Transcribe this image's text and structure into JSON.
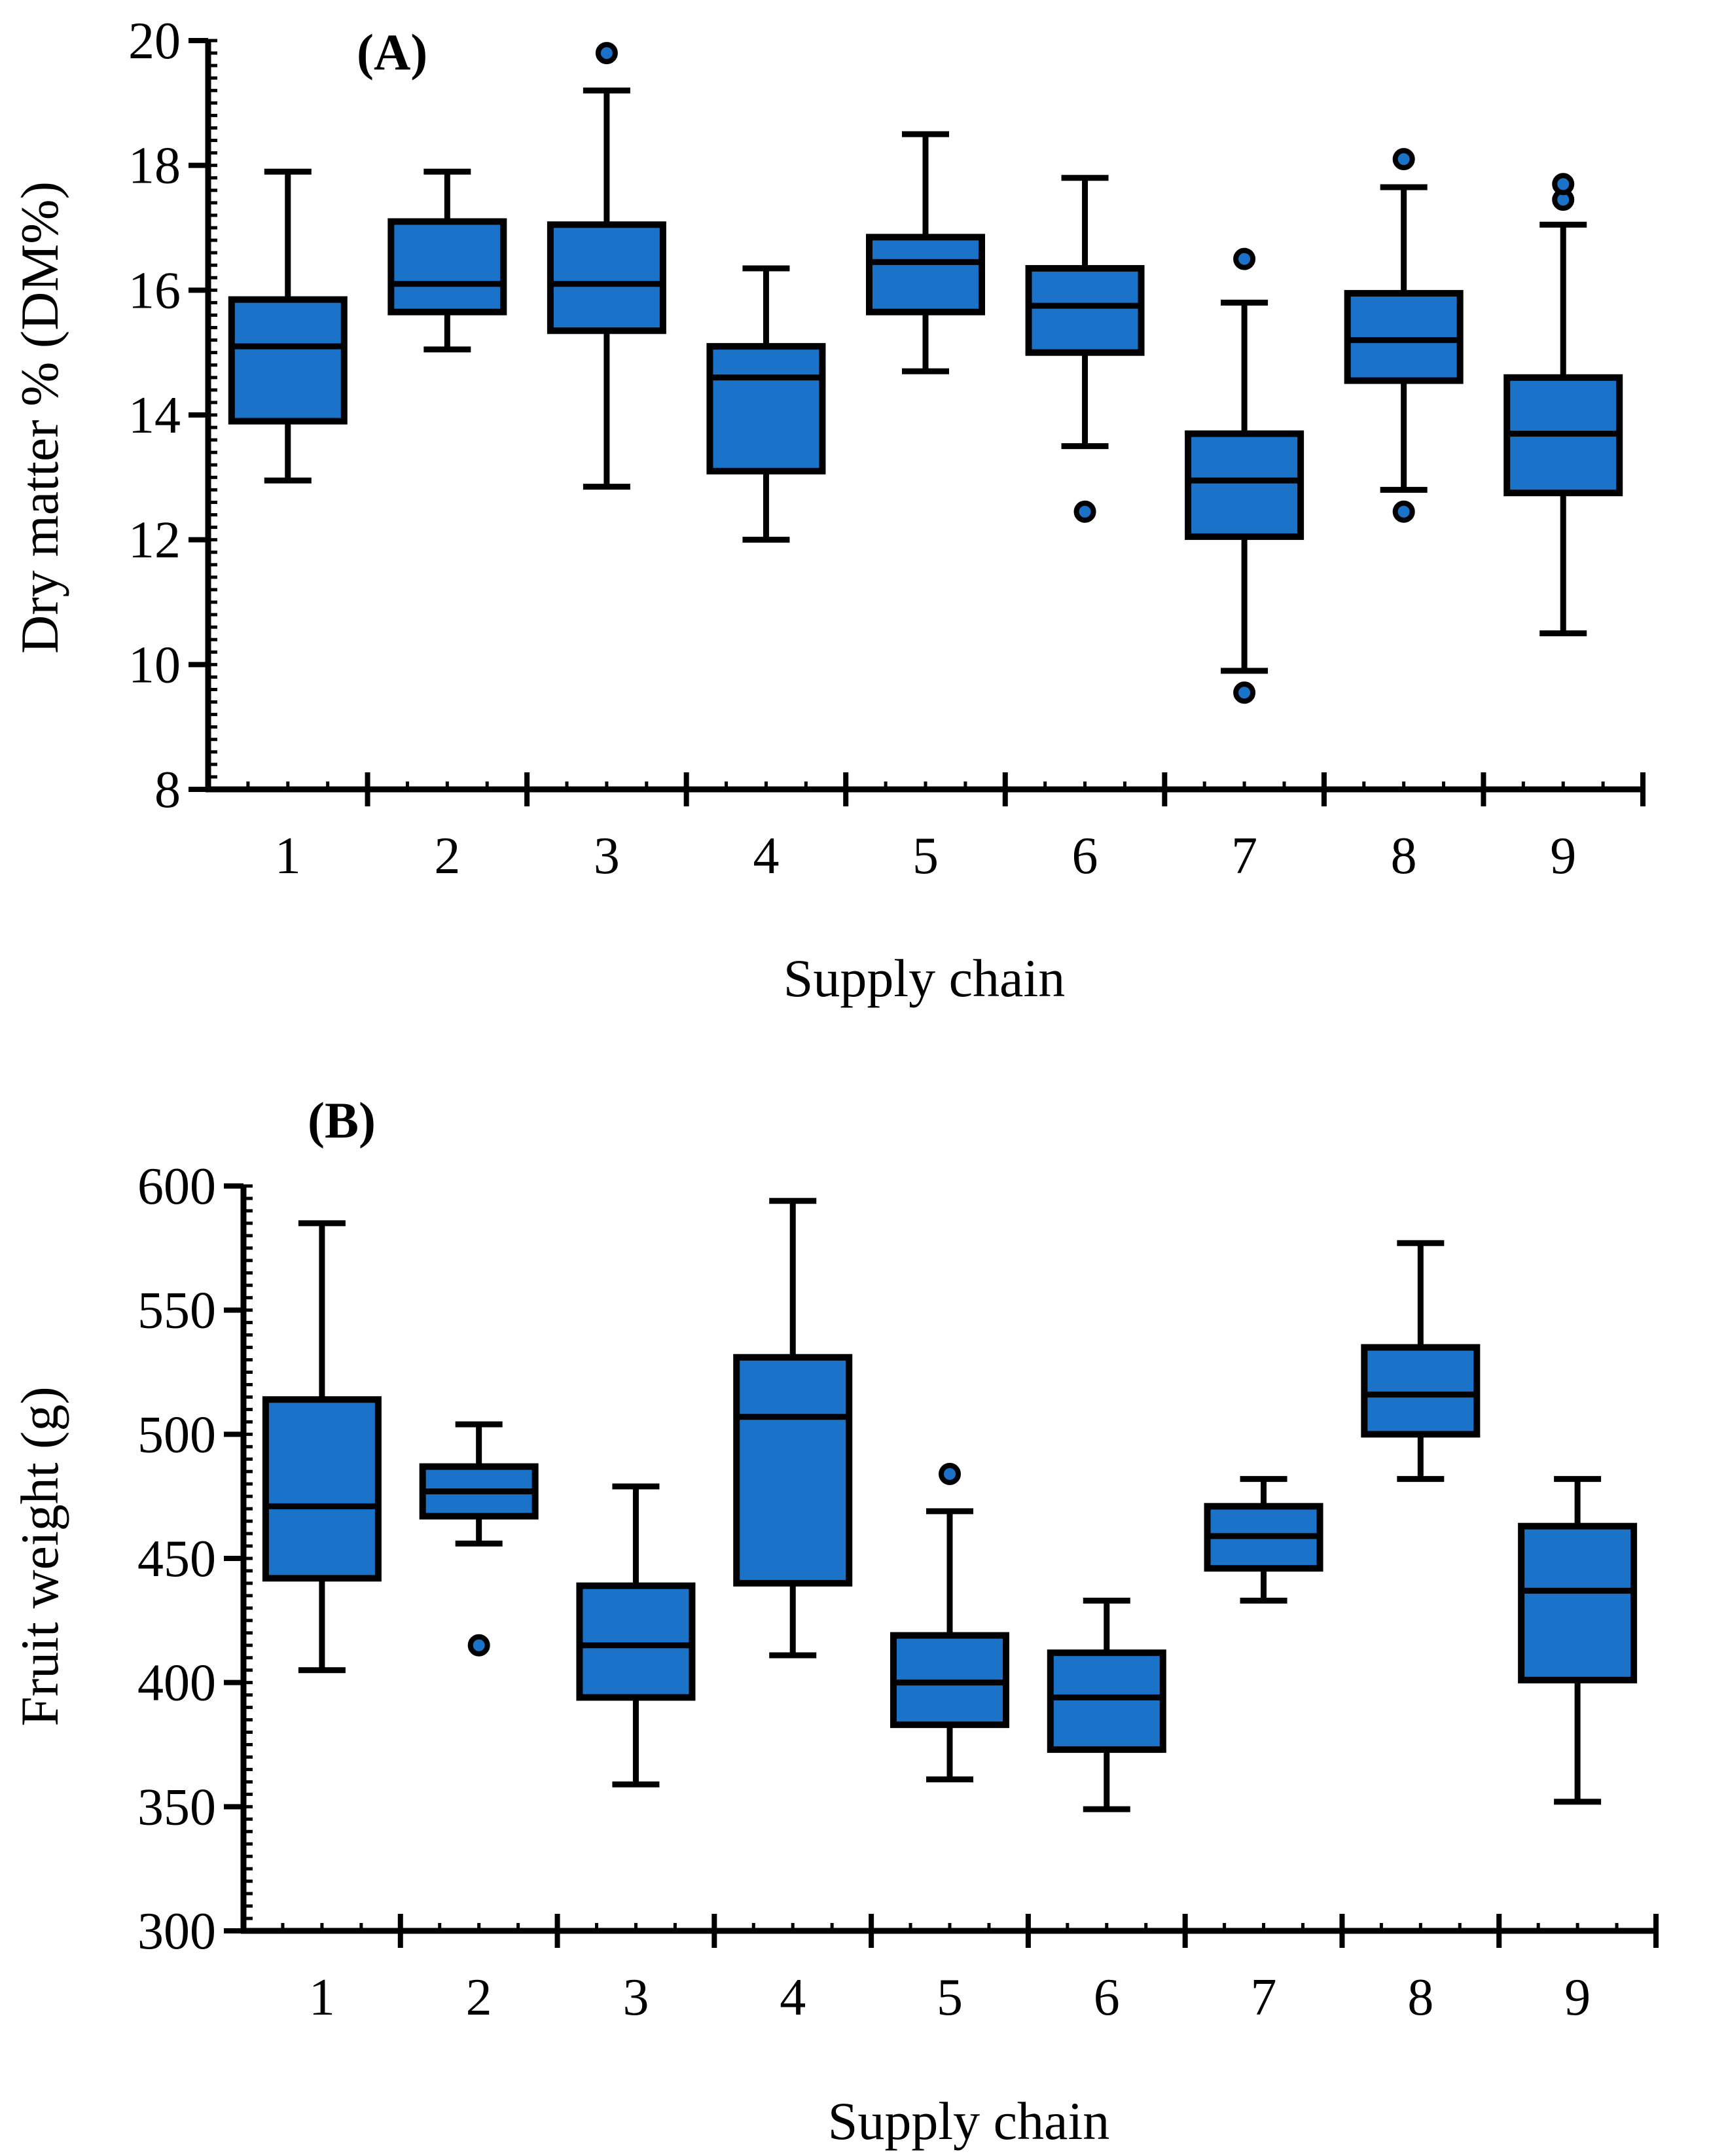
{
  "colors": {
    "box_fill": "#1a73c9",
    "stroke": "#000000",
    "background": "#ffffff"
  },
  "chart_data": [
    {
      "type": "boxplot",
      "panel_label": "(A)",
      "xlabel": "Supply chain",
      "ylabel": "Dry matter % (DM%)",
      "ylim": [
        8,
        20
      ],
      "yticks": [
        8,
        10,
        12,
        14,
        16,
        18,
        20
      ],
      "ytick_labels": [
        "8",
        "10",
        "12",
        "14",
        "16",
        "18",
        "20"
      ],
      "categories": [
        "1",
        "2",
        "3",
        "4",
        "5",
        "6",
        "7",
        "8",
        "9"
      ],
      "boxes": [
        {
          "category": "1",
          "whisker_low": 12.95,
          "q1": 13.9,
          "median": 15.1,
          "q3": 15.85,
          "whisker_high": 17.9,
          "outliers": []
        },
        {
          "category": "2",
          "whisker_low": 15.05,
          "q1": 15.65,
          "median": 16.1,
          "q3": 17.1,
          "whisker_high": 17.9,
          "outliers": []
        },
        {
          "category": "3",
          "whisker_low": 12.85,
          "q1": 15.35,
          "median": 16.1,
          "q3": 17.05,
          "whisker_high": 19.2,
          "outliers": [
            19.8
          ]
        },
        {
          "category": "4",
          "whisker_low": 12.0,
          "q1": 13.1,
          "median": 14.6,
          "q3": 15.1,
          "whisker_high": 16.35,
          "outliers": []
        },
        {
          "category": "5",
          "whisker_low": 14.7,
          "q1": 15.65,
          "median": 16.45,
          "q3": 16.85,
          "whisker_high": 18.5,
          "outliers": []
        },
        {
          "category": "6",
          "whisker_low": 13.5,
          "q1": 15.0,
          "median": 15.75,
          "q3": 16.35,
          "whisker_high": 17.8,
          "outliers": [
            12.45
          ]
        },
        {
          "category": "7",
          "whisker_low": 9.9,
          "q1": 12.05,
          "median": 12.95,
          "q3": 13.7,
          "whisker_high": 15.8,
          "outliers": [
            9.55,
            16.5
          ]
        },
        {
          "category": "8",
          "whisker_low": 12.8,
          "q1": 14.55,
          "median": 15.2,
          "q3": 15.95,
          "whisker_high": 17.65,
          "outliers": [
            12.45,
            18.1
          ]
        },
        {
          "category": "9",
          "whisker_low": 10.5,
          "q1": 12.75,
          "median": 13.7,
          "q3": 14.6,
          "whisker_high": 17.05,
          "outliers": [
            17.45,
            17.7
          ]
        }
      ]
    },
    {
      "type": "boxplot",
      "panel_label": "(B)",
      "xlabel": "Supply chain",
      "ylabel": "Fruit weight (g)",
      "ylim": [
        300,
        600
      ],
      "yticks": [
        300,
        350,
        400,
        450,
        500,
        550,
        600
      ],
      "ytick_labels": [
        "300",
        "350",
        "400",
        "450",
        "500",
        "550",
        "600"
      ],
      "categories": [
        "1",
        "2",
        "3",
        "4",
        "5",
        "6",
        "7",
        "8",
        "9"
      ],
      "boxes": [
        {
          "category": "1",
          "whisker_low": 405,
          "q1": 442,
          "median": 471,
          "q3": 514,
          "whisker_high": 585,
          "outliers": []
        },
        {
          "category": "2",
          "whisker_low": 456,
          "q1": 467,
          "median": 477,
          "q3": 487,
          "whisker_high": 504,
          "outliers": [
            415
          ]
        },
        {
          "category": "3",
          "whisker_low": 359,
          "q1": 394,
          "median": 415,
          "q3": 439,
          "whisker_high": 479,
          "outliers": []
        },
        {
          "category": "4",
          "whisker_low": 411,
          "q1": 440,
          "median": 507,
          "q3": 531,
          "whisker_high": 594,
          "outliers": []
        },
        {
          "category": "5",
          "whisker_low": 361,
          "q1": 383,
          "median": 400,
          "q3": 419,
          "whisker_high": 469,
          "outliers": [
            484
          ]
        },
        {
          "category": "6",
          "whisker_low": 349,
          "q1": 373,
          "median": 394,
          "q3": 412,
          "whisker_high": 433,
          "outliers": []
        },
        {
          "category": "7",
          "whisker_low": 433,
          "q1": 446,
          "median": 459,
          "q3": 471,
          "whisker_high": 482,
          "outliers": []
        },
        {
          "category": "8",
          "whisker_low": 482,
          "q1": 500,
          "median": 516,
          "q3": 535,
          "whisker_high": 577,
          "outliers": []
        },
        {
          "category": "9",
          "whisker_low": 352,
          "q1": 401,
          "median": 437,
          "q3": 463,
          "whisker_high": 482,
          "outliers": []
        }
      ]
    }
  ]
}
